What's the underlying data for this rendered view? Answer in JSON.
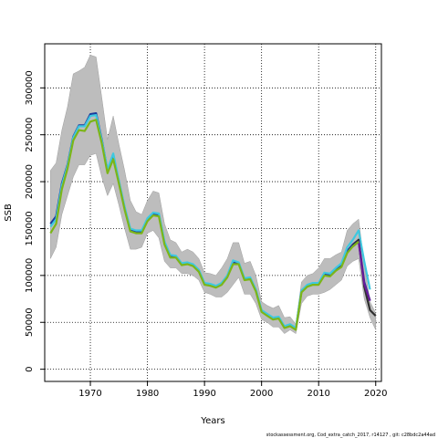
{
  "chart_data": {
    "type": "line",
    "xlabel": "Years",
    "ylabel": "SSB",
    "xlim": [
      1962,
      2021
    ],
    "ylim": [
      -13000,
      347000
    ],
    "x_ticks": [
      "1970",
      "1980",
      "1990",
      "2000",
      "2010",
      "2020"
    ],
    "y_ticks": [
      "0",
      "50000",
      "100000",
      "150000",
      "200000",
      "250000",
      "300000"
    ],
    "grid": true,
    "band": {
      "color": "#bdbdbd",
      "x": [
        1963,
        1964,
        1965,
        1966,
        1967,
        1968,
        1969,
        1970,
        1971,
        1972,
        1973,
        1974,
        1975,
        1976,
        1977,
        1978,
        1979,
        1980,
        1981,
        1982,
        1983,
        1984,
        1985,
        1986,
        1987,
        1988,
        1989,
        1990,
        1991,
        1992,
        1993,
        1994,
        1995,
        1996,
        1997,
        1998,
        1999,
        2000,
        2001,
        2002,
        2003,
        2004,
        2005,
        2006,
        2007,
        2008,
        2009,
        2010,
        2011,
        2012,
        2013,
        2014,
        2015,
        2016,
        2017,
        2018,
        2019,
        2020
      ],
      "lower": [
        118000,
        130000,
        165000,
        185000,
        205000,
        218000,
        218000,
        228000,
        230000,
        205000,
        185000,
        198000,
        175000,
        150000,
        128000,
        128000,
        130000,
        145000,
        148000,
        140000,
        115000,
        108000,
        108000,
        102000,
        102000,
        100000,
        95000,
        82000,
        80000,
        77000,
        77000,
        82000,
        90000,
        98000,
        80000,
        80000,
        70000,
        53000,
        50000,
        45000,
        45000,
        38000,
        42000,
        38000,
        70000,
        78000,
        80000,
        80000,
        82000,
        85000,
        90000,
        95000,
        110000,
        115000,
        118000,
        75000,
        55000,
        42000
      ],
      "upper": [
        212000,
        220000,
        255000,
        280000,
        315000,
        318000,
        322000,
        335000,
        333000,
        290000,
        245000,
        270000,
        240000,
        212000,
        180000,
        168000,
        165000,
        180000,
        190000,
        188000,
        155000,
        138000,
        135000,
        125000,
        128000,
        125000,
        118000,
        103000,
        102000,
        100000,
        108000,
        118000,
        135000,
        135000,
        113000,
        115000,
        100000,
        72000,
        68000,
        65000,
        68000,
        55000,
        56000,
        48000,
        93000,
        100000,
        102000,
        108000,
        118000,
        118000,
        122000,
        125000,
        148000,
        155000,
        160000,
        112000,
        72000,
        60000
      ]
    },
    "series": [
      {
        "color": "#1b3a9c",
        "x": [
          1963,
          1964,
          1965,
          1966,
          1967,
          1968,
          1969,
          1970,
          1971,
          1972,
          1973,
          1974,
          1975,
          1976,
          1977,
          1978,
          1979,
          1980,
          1981,
          1982,
          1983,
          1984,
          1985,
          1986,
          1987,
          1988,
          1989,
          1990,
          1991,
          1992,
          1993,
          1994,
          1995,
          1996,
          1997,
          1998,
          1999,
          2000,
          2001,
          2002,
          2003,
          2004,
          2005,
          2006,
          2007,
          2008,
          2009,
          2010,
          2011,
          2012,
          2013,
          2014,
          2015,
          2016,
          2017,
          2018,
          2019
        ],
        "values": [
          155000,
          163000,
          198000,
          218000,
          248000,
          260000,
          260000,
          272000,
          273000,
          245000,
          212000,
          228000,
          200000,
          172000,
          149000,
          147000,
          147000,
          160000,
          166000,
          165000,
          135000,
          121000,
          120000,
          112000,
          113000,
          111000,
          105000,
          91000,
          90000,
          88000,
          91000,
          99000,
          114000,
          113000,
          96000,
          97000,
          84000,
          62000,
          58000,
          54000,
          55000,
          45000,
          47000,
          43000,
          83000,
          89000,
          91000,
          91000,
          101000,
          100000,
          106000,
          110000,
          126000,
          133000,
          138000,
          93000,
          73000
        ]
      },
      {
        "color": "#3ec8e0",
        "x": [
          1963,
          1964,
          1965,
          1966,
          1967,
          1968,
          1969,
          1970,
          1971,
          1972,
          1973,
          1974,
          1975,
          1976,
          1977,
          1978,
          1979,
          1980,
          1981,
          1982,
          1983,
          1984,
          1985,
          1986,
          1987,
          1988,
          1989,
          1990,
          1991,
          1992,
          1993,
          1994,
          1995,
          1996,
          1997,
          1998,
          1999,
          2000,
          2001,
          2002,
          2003,
          2004,
          2005,
          2006,
          2007,
          2008,
          2009,
          2010,
          2011,
          2012,
          2013,
          2014,
          2015,
          2016,
          2017,
          2018,
          2019
        ],
        "values": [
          152000,
          160000,
          196000,
          217000,
          247000,
          259000,
          259000,
          270000,
          271000,
          244000,
          213000,
          230000,
          201000,
          173000,
          150000,
          148000,
          148000,
          161000,
          167000,
          166000,
          136000,
          122000,
          121000,
          113000,
          114000,
          112000,
          106000,
          92000,
          91000,
          89000,
          92000,
          100000,
          116000,
          114000,
          97000,
          98000,
          85000,
          63000,
          59000,
          55000,
          56000,
          46000,
          48000,
          44000,
          84000,
          90000,
          92000,
          92000,
          103000,
          102000,
          108000,
          113000,
          130000,
          138000,
          148000,
          115000,
          85000
        ]
      },
      {
        "color": "#2e2e2e",
        "x": [
          2016,
          2017,
          2018,
          2019,
          2020
        ],
        "values": [
          132000,
          138000,
          88000,
          63000,
          57000
        ]
      },
      {
        "color": "#6a1b9a",
        "x": [
          2016,
          2017,
          2018,
          2019
        ],
        "values": [
          131000,
          136000,
          91000,
          73000
        ]
      },
      {
        "color": "#7cb518",
        "x": [
          1963,
          1964,
          1965,
          1966,
          1967,
          1968,
          1969,
          1970,
          1971,
          1972,
          1973,
          1974,
          1975,
          1976,
          1977,
          1978,
          1979,
          1980,
          1981,
          1982,
          1983,
          1984,
          1985,
          1986,
          1987,
          1988,
          1989,
          1990,
          1991,
          1992,
          1993,
          1994,
          1995,
          1996,
          1997,
          1998,
          1999,
          2000,
          2001,
          2002,
          2003,
          2004,
          2005,
          2006,
          2007,
          2008,
          2009,
          2010,
          2011,
          2012,
          2013,
          2014,
          2015,
          2016,
          2017
        ],
        "values": [
          145000,
          155000,
          192000,
          214000,
          244000,
          255000,
          254000,
          264000,
          266000,
          241000,
          209000,
          224000,
          198000,
          170000,
          147000,
          145000,
          145000,
          158000,
          164000,
          163000,
          133000,
          119000,
          119000,
          111000,
          112000,
          110000,
          104000,
          90000,
          89000,
          87000,
          90000,
          98000,
          112000,
          112000,
          95000,
          96000,
          83000,
          61000,
          57000,
          53000,
          54000,
          44000,
          46000,
          42000,
          82000,
          88000,
          90000,
          90000,
          100000,
          99000,
          105000,
          109000,
          124000,
          131000,
          136000
        ]
      }
    ]
  },
  "footer": "stockassessment.org, Cod_extra_catch_2017, r14127 , git: c28bdc2a44ad"
}
